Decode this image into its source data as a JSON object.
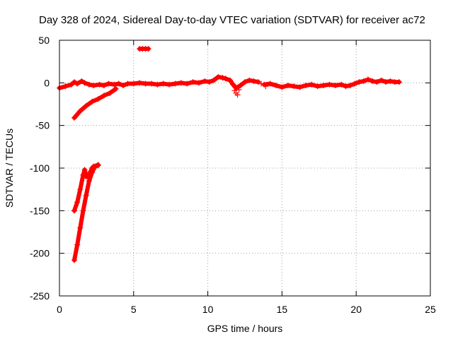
{
  "chart_data": {
    "type": "scatter",
    "title": "Day 328 of 2024, Sidereal Day-to-day VTEC variation (SDTVAR) for receiver ac72",
    "xlabel": "GPS time / hours",
    "ylabel": "SDTVAR / TECUs",
    "xlim": [
      0,
      25
    ],
    "ylim": [
      -250,
      50
    ],
    "xticks": [
      0,
      5,
      10,
      15,
      20,
      25
    ],
    "yticks": [
      50,
      0,
      -50,
      -100,
      -150,
      -200,
      -250
    ],
    "grid": true,
    "marker": "+",
    "color": "#ff0000",
    "series": [
      {
        "name": "main",
        "segments": [
          [
            [
              0.0,
              -6
            ],
            [
              0.4,
              -4
            ],
            [
              0.8,
              -2
            ],
            [
              1.0,
              1
            ],
            [
              1.2,
              -1
            ],
            [
              1.5,
              2
            ],
            [
              1.7,
              0
            ],
            [
              2.0,
              -2
            ],
            [
              2.3,
              -3
            ],
            [
              2.7,
              -2
            ],
            [
              3.0,
              -3
            ],
            [
              3.3,
              -1
            ],
            [
              3.7,
              -2
            ],
            [
              4.0,
              -1
            ],
            [
              4.3,
              -3
            ],
            [
              4.6,
              -1
            ],
            [
              5.0,
              -1
            ],
            [
              5.4,
              0
            ],
            [
              5.8,
              -1
            ],
            [
              6.2,
              -1
            ],
            [
              6.6,
              -2
            ],
            [
              7.0,
              -1
            ],
            [
              7.4,
              -2
            ],
            [
              7.8,
              -1
            ],
            [
              8.2,
              0
            ],
            [
              8.6,
              -1
            ],
            [
              9.0,
              1
            ],
            [
              9.4,
              0
            ],
            [
              9.8,
              2
            ],
            [
              10.1,
              1
            ],
            [
              10.4,
              3
            ],
            [
              10.7,
              7
            ],
            [
              11.0,
              6
            ],
            [
              11.2,
              5
            ],
            [
              11.5,
              3
            ],
            [
              11.7,
              -2
            ],
            [
              11.9,
              -6
            ],
            [
              12.2,
              -3
            ],
            [
              12.5,
              1
            ],
            [
              12.8,
              3
            ],
            [
              13.1,
              2
            ],
            [
              13.4,
              1
            ]
          ],
          [
            [
              13.8,
              -2
            ],
            [
              14.2,
              -1
            ],
            [
              14.6,
              -3
            ],
            [
              15.0,
              -5
            ],
            [
              15.4,
              -3
            ],
            [
              15.8,
              -4
            ],
            [
              16.2,
              -5
            ],
            [
              16.6,
              -3
            ],
            [
              17.0,
              -2
            ],
            [
              17.4,
              -4
            ],
            [
              17.8,
              -3
            ],
            [
              18.2,
              -2
            ],
            [
              18.6,
              -3
            ],
            [
              19.0,
              -2
            ],
            [
              19.3,
              -4
            ],
            [
              19.6,
              -3
            ],
            [
              19.9,
              -1
            ],
            [
              20.2,
              1
            ],
            [
              20.5,
              2
            ],
            [
              20.8,
              4
            ],
            [
              21.1,
              2
            ],
            [
              21.4,
              1
            ],
            [
              21.7,
              3
            ],
            [
              22.0,
              1
            ],
            [
              22.3,
              2
            ],
            [
              22.6,
              1
            ],
            [
              22.9,
              1
            ]
          ],
          [
            [
              1.0,
              -41
            ],
            [
              1.4,
              -33
            ],
            [
              1.8,
              -27
            ],
            [
              2.2,
              -22
            ],
            [
              2.6,
              -19
            ],
            [
              3.0,
              -15
            ],
            [
              3.4,
              -12
            ],
            [
              3.8,
              -7
            ]
          ],
          [
            [
              1.0,
              -150
            ],
            [
              1.2,
              -140
            ],
            [
              1.4,
              -125
            ],
            [
              1.6,
              -108
            ],
            [
              1.7,
              -102
            ],
            [
              1.8,
              -110
            ],
            [
              1.9,
              -108
            ],
            [
              2.0,
              -112
            ],
            [
              2.1,
              -104
            ],
            [
              2.2,
              -100
            ],
            [
              2.3,
              -98
            ],
            [
              2.4,
              -98
            ],
            [
              2.6,
              -97
            ]
          ],
          [
            [
              1.0,
              -208
            ],
            [
              1.2,
              -190
            ],
            [
              1.4,
              -170
            ],
            [
              1.6,
              -150
            ],
            [
              1.8,
              -132
            ],
            [
              2.0,
              -115
            ],
            [
              2.2,
              -105
            ],
            [
              2.4,
              -98
            ],
            [
              2.6,
              -96
            ]
          ],
          [
            [
              5.4,
              40
            ],
            [
              5.6,
              40
            ],
            [
              5.8,
              40
            ],
            [
              6.0,
              40
            ]
          ]
        ],
        "scatter_points": [
          [
            11.9,
            -12
          ],
          [
            12.0,
            -14
          ],
          [
            11.8,
            -9
          ],
          [
            12.1,
            -8
          ],
          [
            13.6,
            -1
          ],
          [
            13.9,
            -4
          ]
        ]
      }
    ]
  }
}
